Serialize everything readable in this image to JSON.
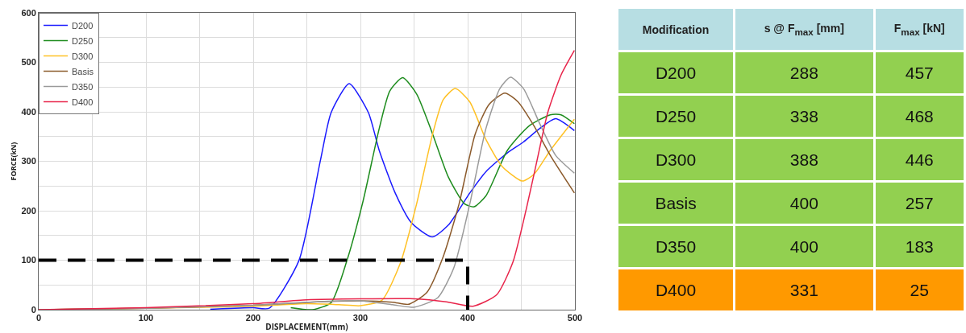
{
  "chart_data": [
    {
      "type": "line",
      "xlabel": "DISPLACEMENT(mm)",
      "ylabel": "FORCE(kN)",
      "xlim": [
        0,
        500
      ],
      "ylim": [
        0,
        600
      ],
      "xticks": [
        0,
        {
          "value": 50,
          "label": null
        },
        100,
        {
          "value": 150,
          "label": null
        },
        200,
        {
          "value": 250,
          "label": null
        },
        300,
        {
          "value": 350,
          "label": null
        },
        400,
        {
          "value": 450,
          "label": null
        },
        500
      ],
      "yticks": [
        0,
        {
          "value": 50,
          "label": null
        },
        100,
        {
          "value": 150,
          "label": null
        },
        200,
        {
          "value": 250,
          "label": null
        },
        300,
        {
          "value": 350,
          "label": null
        },
        400,
        {
          "value": 450,
          "label": null
        },
        500,
        {
          "value": 550,
          "label": null
        },
        600
      ],
      "grid": true,
      "legend": "top left",
      "marker": "none",
      "line_style": "solid",
      "series": [
        {
          "name": "D200",
          "color": "#1a1aff",
          "x": [
            160,
            200,
            215,
            242.6,
            262.6,
            272.6,
            289.5,
            307.5,
            317.5,
            332.4,
            347.4,
            367,
            382,
            402,
            417,
            437,
            452,
            467,
            482,
            499.5
          ],
          "values": [
            1,
            4,
            3,
            99,
            301,
            398,
            457,
            398,
            322,
            236,
            176,
            147,
            171,
            236,
            279,
            317,
            339,
            366,
            386,
            362
          ]
        },
        {
          "name": "D250",
          "color": "#1e8c1e",
          "x": [
            235,
            255,
            272.6,
            287.5,
            302.5,
            317.5,
            327.4,
            339.4,
            352.4,
            367.3,
            382,
            397,
            406,
            417,
            437,
            457,
            477,
            487,
            499.5
          ],
          "values": [
            4,
            0,
            14,
            100,
            220,
            366,
            442,
            469,
            436,
            355,
            268,
            214,
            208,
            230,
            322,
            371,
            394,
            394,
            376
          ]
        },
        {
          "name": "D300",
          "color": "#ffc125",
          "x": [
            0,
            100,
            200,
            250,
            280,
            300,
            320,
            337.4,
            352.4,
            367.3,
            377.3,
            388.5,
            402,
            417,
            432,
            451,
            462,
            477,
            499.5
          ],
          "values": [
            0,
            3,
            7,
            12,
            10,
            8,
            19,
            95,
            214,
            355,
            425,
            447,
            420,
            344,
            290,
            260,
            274,
            322,
            385
          ]
        },
        {
          "name": "Basis",
          "color": "#8b5a2b",
          "x": [
            0,
            100,
            200,
            260,
            300,
            330,
            345,
            362,
            377,
            392,
            407,
            420,
            434.7,
            447,
            462,
            477,
            499.5
          ],
          "values": [
            0,
            3,
            9,
            16,
            18,
            15,
            11,
            35,
            106,
            214,
            355,
            415,
            438,
            420,
            371,
            312,
            236
          ]
        },
        {
          "name": "D350",
          "color": "#9a9a9a",
          "x": [
            0,
            100,
            200,
            270,
            300,
            330,
            350,
            372,
            387,
            402,
            417,
            430,
            440,
            452,
            467,
            482,
            499.5
          ],
          "values": [
            0,
            3,
            9,
            17,
            18,
            10,
            5,
            24,
            84,
            214,
            366,
            447,
            470,
            447,
            377,
            312,
            276
          ]
        },
        {
          "name": "D400",
          "color": "#e8244a",
          "x": [
            0,
            100,
            200,
            250,
            300,
            350,
            380,
            405,
            427,
            442,
            454.6,
            464.6,
            474.6,
            487,
            499.5
          ],
          "values": [
            0,
            4,
            12,
            20,
            22,
            22,
            16,
            7,
            30,
            95,
            203,
            301,
            398,
            474,
            524
          ]
        },
        {
          "color": "#000000",
          "line_style": "dashed",
          "x": [
            0,
            400,
            400
          ],
          "values": [
            100,
            100,
            0
          ]
        }
      ]
    },
    {
      "type": "other",
      "xlabel": "Modification",
      "categories": [
        "D200",
        "D250",
        "D300",
        "Basis",
        "D350",
        "D400"
      ],
      "colors": [
        "#92d050",
        "#92d050",
        "#92d050",
        "#92d050",
        "#92d050",
        "#ff9900"
      ],
      "data_labels": true,
      "series": [
        {
          "name": "s @ F$_{max}$ [mm]",
          "colors": [
            "#92d050",
            "#92d050",
            "#92d050",
            "#92d050",
            "#92d050",
            "#ff9900"
          ],
          "values": [
            288,
            338,
            388,
            400,
            400,
            331
          ]
        },
        {
          "name": "F$_{max}$ [kN]",
          "colors": [
            "#92d050",
            "#92d050",
            "#92d050",
            "#92d050",
            "#92d050",
            "#ff9900"
          ],
          "values": [
            457,
            468,
            446,
            257,
            183,
            25
          ]
        }
      ]
    }
  ]
}
